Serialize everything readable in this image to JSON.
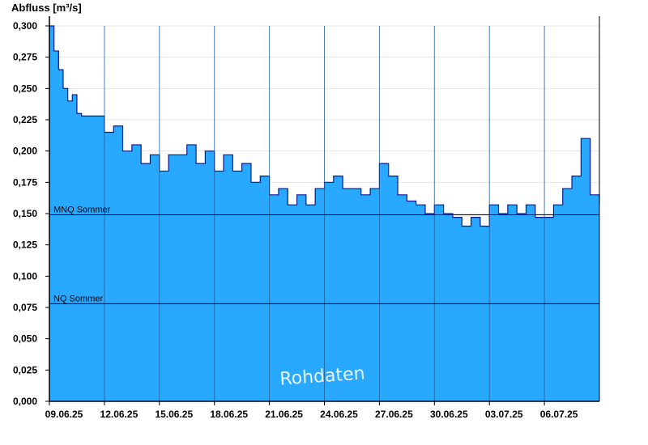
{
  "chart_data": {
    "type": "area",
    "ylabel": "Abfluss [m³/s]",
    "ylim": [
      0,
      0.3
    ],
    "y_ticks": [
      "0,000",
      "0,025",
      "0,050",
      "0,075",
      "0,100",
      "0,125",
      "0,150",
      "0,175",
      "0,200",
      "0,225",
      "0,250",
      "0,275",
      "0,300"
    ],
    "y_tick_values": [
      0,
      0.025,
      0.05,
      0.075,
      0.1,
      0.125,
      0.15,
      0.175,
      0.2,
      0.225,
      0.25,
      0.275,
      0.3
    ],
    "x_ticks": [
      "09.06.25",
      "12.06.25",
      "15.06.25",
      "18.06.25",
      "21.06.25",
      "24.06.25",
      "27.06.25",
      "30.06.25",
      "03.07.25",
      "06.07.25"
    ],
    "x_start": "2025-06-09",
    "x_end": "2025-07-09",
    "x_tick_dates": [
      "2025-06-09",
      "2025-06-12",
      "2025-06-15",
      "2025-06-18",
      "2025-06-21",
      "2025-06-24",
      "2025-06-27",
      "2025-06-30",
      "2025-07-03",
      "2025-07-06"
    ],
    "grid": true,
    "reference_lines": [
      {
        "name": "MNQ Sommer",
        "value": 0.149
      },
      {
        "name": "NQ Sommer",
        "value": 0.078
      }
    ],
    "series": [
      {
        "name": "Abfluss",
        "x": [
          "2025-06-09",
          "2025-06-09T06",
          "2025-06-09T12",
          "2025-06-09T18",
          "2025-06-10",
          "2025-06-10T06",
          "2025-06-10T12",
          "2025-06-10T18",
          "2025-06-11",
          "2025-06-11T06",
          "2025-06-11T12",
          "2025-06-11T18",
          "2025-06-12",
          "2025-06-12T12",
          "2025-06-13",
          "2025-06-13T12",
          "2025-06-14",
          "2025-06-14T12",
          "2025-06-15",
          "2025-06-15T12",
          "2025-06-16",
          "2025-06-16T12",
          "2025-06-17",
          "2025-06-17T12",
          "2025-06-18",
          "2025-06-18T12",
          "2025-06-19",
          "2025-06-19T12",
          "2025-06-20",
          "2025-06-20T12",
          "2025-06-21",
          "2025-06-21T12",
          "2025-06-22",
          "2025-06-22T12",
          "2025-06-23",
          "2025-06-23T12",
          "2025-06-24",
          "2025-06-24T12",
          "2025-06-25",
          "2025-06-25T12",
          "2025-06-26",
          "2025-06-26T12",
          "2025-06-27",
          "2025-06-27T12",
          "2025-06-28",
          "2025-06-28T12",
          "2025-06-29",
          "2025-06-29T12",
          "2025-06-30",
          "2025-06-30T12",
          "2025-07-01",
          "2025-07-01T12",
          "2025-07-02",
          "2025-07-02T12",
          "2025-07-03",
          "2025-07-03T12",
          "2025-07-04",
          "2025-07-04T12",
          "2025-07-05",
          "2025-07-05T12",
          "2025-07-06",
          "2025-07-06T12",
          "2025-07-07",
          "2025-07-07T12",
          "2025-07-08",
          "2025-07-08T12",
          "2025-07-09"
        ],
        "values": [
          0.3,
          0.28,
          0.265,
          0.25,
          0.24,
          0.245,
          0.23,
          0.228,
          0.228,
          0.228,
          0.228,
          0.228,
          0.215,
          0.22,
          0.2,
          0.205,
          0.19,
          0.197,
          0.184,
          0.197,
          0.197,
          0.205,
          0.19,
          0.2,
          0.184,
          0.197,
          0.184,
          0.19,
          0.175,
          0.18,
          0.165,
          0.17,
          0.157,
          0.165,
          0.157,
          0.17,
          0.175,
          0.18,
          0.17,
          0.17,
          0.165,
          0.17,
          0.19,
          0.18,
          0.165,
          0.16,
          0.157,
          0.15,
          0.157,
          0.15,
          0.147,
          0.14,
          0.147,
          0.14,
          0.157,
          0.15,
          0.157,
          0.15,
          0.157,
          0.147,
          0.147,
          0.157,
          0.17,
          0.18,
          0.21,
          0.165,
          0.157
        ]
      }
    ]
  },
  "labels": {
    "watermark": "Rohdaten"
  },
  "colors": {
    "area_fill": "#29a8ff",
    "area_stroke": "#0a1a8c",
    "grid": "#e6e6e6",
    "vgrid": "#1f5f99",
    "axis": "#000000",
    "refline": "#000000"
  }
}
